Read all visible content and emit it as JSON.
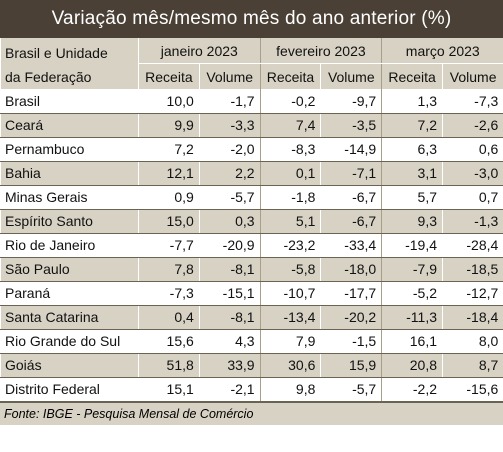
{
  "title": "Variação mês/mesmo mês do ano anterior (%)",
  "header": {
    "region_line1": "Brasil e Unidade",
    "region_line2": "da Federação",
    "months": [
      "janeiro 2023",
      "fevereiro 2023",
      "março 2023"
    ],
    "sub": [
      "Receita",
      "Volume",
      "Receita",
      "Volume",
      "Receita",
      "Volume"
    ]
  },
  "rows": [
    {
      "name": "Brasil",
      "values": [
        "10,0",
        "-1,7",
        "-0,2",
        "-9,7",
        "1,3",
        "-7,3"
      ]
    },
    {
      "name": "Ceará",
      "values": [
        "9,9",
        "-3,3",
        "7,4",
        "-3,5",
        "7,2",
        "-2,6"
      ]
    },
    {
      "name": "Pernambuco",
      "values": [
        "7,2",
        "-2,0",
        "-8,3",
        "-14,9",
        "6,3",
        "0,6"
      ]
    },
    {
      "name": "Bahia",
      "values": [
        "12,1",
        "2,2",
        "0,1",
        "-7,1",
        "3,1",
        "-3,0"
      ]
    },
    {
      "name": "Minas Gerais",
      "values": [
        "0,9",
        "-5,7",
        "-1,8",
        "-6,7",
        "5,7",
        "0,7"
      ]
    },
    {
      "name": "Espírito Santo",
      "values": [
        "15,0",
        "0,3",
        "5,1",
        "-6,7",
        "9,3",
        "-1,3"
      ]
    },
    {
      "name": "Rio de Janeiro",
      "values": [
        "-7,7",
        "-20,9",
        "-23,2",
        "-33,4",
        "-19,4",
        "-28,4"
      ]
    },
    {
      "name": "São Paulo",
      "values": [
        "7,8",
        "-8,1",
        "-5,8",
        "-18,0",
        "-7,9",
        "-18,5"
      ]
    },
    {
      "name": "Paraná",
      "values": [
        "-7,3",
        "-15,1",
        "-10,7",
        "-17,7",
        "-5,2",
        "-12,7"
      ]
    },
    {
      "name": "Santa Catarina",
      "values": [
        "0,4",
        "-8,1",
        "-13,4",
        "-20,2",
        "-11,3",
        "-18,4"
      ]
    },
    {
      "name": "Rio Grande do Sul",
      "values": [
        "15,6",
        "4,3",
        "7,9",
        "-1,5",
        "16,1",
        "8,0"
      ]
    },
    {
      "name": "Goiás",
      "values": [
        "51,8",
        "33,9",
        "30,6",
        "15,9",
        "20,8",
        "8,7"
      ]
    },
    {
      "name": "Distrito Federal",
      "values": [
        "15,1",
        "-2,1",
        "9,8",
        "-5,7",
        "-2,2",
        "-15,6"
      ]
    }
  ],
  "footer": "Fonte: IBGE - Pesquisa Mensal de Comércio",
  "colors": {
    "title_bg": "#4a4035",
    "stripe": "#d8d2c4",
    "rule": "#6b6352"
  }
}
